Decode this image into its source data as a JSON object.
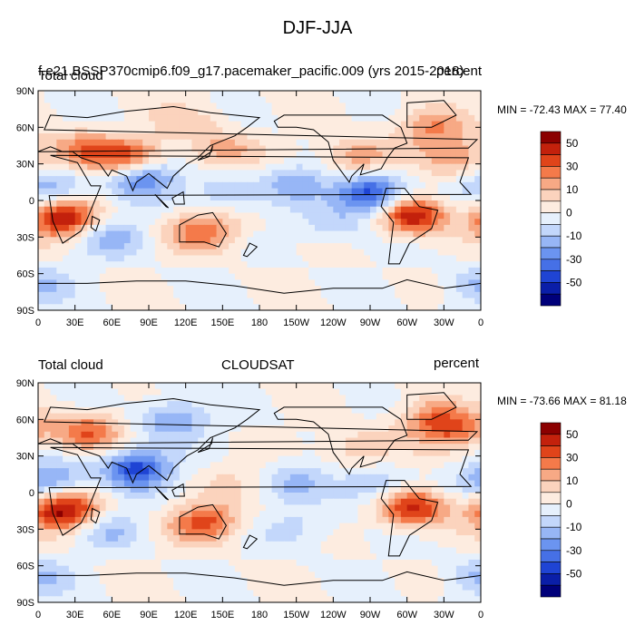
{
  "figure": {
    "title": "DJF-JJA"
  },
  "chart_data": [
    {
      "type": "heatmap",
      "subtype": "global filled-contour map",
      "title_left": "Total cloud",
      "title_center": "f.e21.BSSP370cmip6.f09_g17.pacemaker_pacific.009 (yrs 2015-2018)",
      "title_right": "percent",
      "stats": "MIN = -72.43 MAX =  77.40",
      "x_ticks": [
        "0",
        "30E",
        "60E",
        "90E",
        "120E",
        "150E",
        "180",
        "150W",
        "120W",
        "90W",
        "60W",
        "30W",
        "0"
      ],
      "y_ticks": [
        "90N",
        "60N",
        "30N",
        "0",
        "30S",
        "60S",
        "90S"
      ],
      "colorbar": {
        "labels": [
          "50",
          "30",
          "10",
          "0",
          "-10",
          "-30",
          "-50"
        ],
        "colors": [
          "#8b0000",
          "#c3210c",
          "#e0441a",
          "#f47a4a",
          "#f7a985",
          "#fbd3bd",
          "#fdece0",
          "#e6f0fc",
          "#c3d7fb",
          "#97b6f6",
          "#6b94f0",
          "#4670e6",
          "#1f44d4",
          "#0a1ea8",
          "#00007a"
        ]
      },
      "regions": [
        {
          "lon": 20,
          "lat": -15,
          "v": 60
        },
        {
          "lon": -55,
          "lat": -12,
          "v": 60
        },
        {
          "lon": 135,
          "lat": -25,
          "v": 40
        },
        {
          "lon": 75,
          "lat": 35,
          "v": 45
        },
        {
          "lon": 35,
          "lat": 40,
          "v": 35
        },
        {
          "lon": -100,
          "lat": 35,
          "v": 30
        },
        {
          "lon": -20,
          "lat": 35,
          "v": 25
        },
        {
          "lon": 150,
          "lat": 40,
          "v": 25
        },
        {
          "lon": -90,
          "lat": 5,
          "v": -60
        },
        {
          "lon": 85,
          "lat": 20,
          "v": -45
        },
        {
          "lon": 10,
          "lat": 10,
          "v": -30
        },
        {
          "lon": -150,
          "lat": 15,
          "v": -25
        },
        {
          "lon": 150,
          "lat": 5,
          "v": -20
        },
        {
          "lon": 60,
          "lat": -30,
          "v": -25
        },
        {
          "lon": -120,
          "lat": -20,
          "v": -15
        },
        {
          "lon": 0,
          "lat": -70,
          "v": -20
        },
        {
          "lon": 120,
          "lat": 65,
          "v": 15
        },
        {
          "lon": -40,
          "lat": 60,
          "v": 30
        }
      ]
    },
    {
      "type": "heatmap",
      "subtype": "global filled-contour map",
      "title_left": "Total cloud",
      "title_center": "CLOUDSAT",
      "title_right": "percent",
      "stats": "MIN = -73.66 MAX =  81.18",
      "x_ticks": [
        "0",
        "30E",
        "60E",
        "90E",
        "120E",
        "150E",
        "180",
        "150W",
        "120W",
        "90W",
        "60W",
        "30W",
        "0"
      ],
      "y_ticks": [
        "90N",
        "60N",
        "30N",
        "0",
        "30S",
        "60S",
        "90S"
      ],
      "colorbar": {
        "labels": [
          "50",
          "30",
          "10",
          "0",
          "-10",
          "-30",
          "-50"
        ],
        "colors": [
          "#8b0000",
          "#c3210c",
          "#e0441a",
          "#f47a4a",
          "#f7a985",
          "#fbd3bd",
          "#fdece0",
          "#e6f0fc",
          "#c3d7fb",
          "#97b6f6",
          "#6b94f0",
          "#4670e6",
          "#1f44d4",
          "#0a1ea8",
          "#00007a"
        ]
      },
      "regions": [
        {
          "lon": 20,
          "lat": -15,
          "v": 65
        },
        {
          "lon": -55,
          "lat": -12,
          "v": 55
        },
        {
          "lon": 135,
          "lat": -25,
          "v": 45
        },
        {
          "lon": 40,
          "lat": 50,
          "v": 40
        },
        {
          "lon": -20,
          "lat": 50,
          "v": 30
        },
        {
          "lon": -100,
          "lat": 35,
          "v": 20
        },
        {
          "lon": -40,
          "lat": 60,
          "v": 30
        },
        {
          "lon": 80,
          "lat": 20,
          "v": -55
        },
        {
          "lon": 10,
          "lat": 10,
          "v": -35
        },
        {
          "lon": 110,
          "lat": 60,
          "v": -30
        },
        {
          "lon": -90,
          "lat": 5,
          "v": -25
        },
        {
          "lon": -150,
          "lat": 10,
          "v": -20
        },
        {
          "lon": 60,
          "lat": -30,
          "v": -20
        },
        {
          "lon": -150,
          "lat": -30,
          "v": -15
        },
        {
          "lon": 0,
          "lat": -70,
          "v": -20
        },
        {
          "lon": 160,
          "lat": 10,
          "v": 10
        }
      ]
    }
  ]
}
